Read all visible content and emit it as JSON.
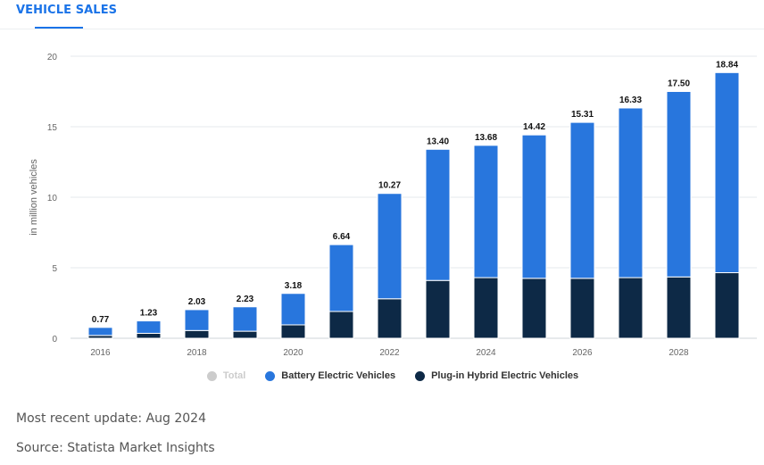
{
  "header": {
    "tab_label": "VEHICLE SALES"
  },
  "chart_data": {
    "type": "bar",
    "stacked": true,
    "ylabel": "in million vehicles",
    "xlabel": "",
    "ylim": [
      0,
      20
    ],
    "yticks": [
      0,
      5,
      10,
      15,
      20
    ],
    "categories": [
      "2016",
      "2017",
      "2018",
      "2019",
      "2020",
      "2021",
      "2022",
      "2023",
      "2024",
      "2025",
      "2026",
      "2027",
      "2028",
      "2029"
    ],
    "x_tick_labels": [
      "2016",
      "",
      "2018",
      "",
      "2020",
      "",
      "2022",
      "",
      "2024",
      "",
      "2026",
      "",
      "2028",
      ""
    ],
    "series": [
      {
        "name": "Plug-in Hybrid Electric Vehicles",
        "color": "#0d2946",
        "values": [
          0.2,
          0.35,
          0.55,
          0.5,
          0.95,
          1.9,
          2.8,
          4.1,
          4.3,
          4.25,
          4.25,
          4.3,
          4.35,
          4.65
        ]
      },
      {
        "name": "Battery Electric Vehicles",
        "color": "#2876dd",
        "values": [
          0.57,
          0.88,
          1.48,
          1.73,
          2.23,
          4.74,
          7.47,
          9.3,
          9.38,
          10.17,
          11.06,
          12.03,
          13.15,
          14.19
        ]
      }
    ],
    "totals": {
      "name": "Total",
      "color": "#cccccc",
      "visible": false,
      "values": [
        0.77,
        1.23,
        2.03,
        2.23,
        3.18,
        6.64,
        10.27,
        13.4,
        13.68,
        14.42,
        15.31,
        16.33,
        17.5,
        18.84
      ],
      "labels": [
        "0.77",
        "1.23",
        "2.03",
        "2.23",
        "3.18",
        "6.64",
        "10.27",
        "13.40",
        "13.68",
        "14.42",
        "15.31",
        "16.33",
        "17.50",
        "18.84"
      ]
    },
    "grid": true,
    "legend": "bottom-center"
  },
  "footer": {
    "update": "Most recent update: Aug 2024",
    "source": "Source: Statista Market Insights"
  }
}
